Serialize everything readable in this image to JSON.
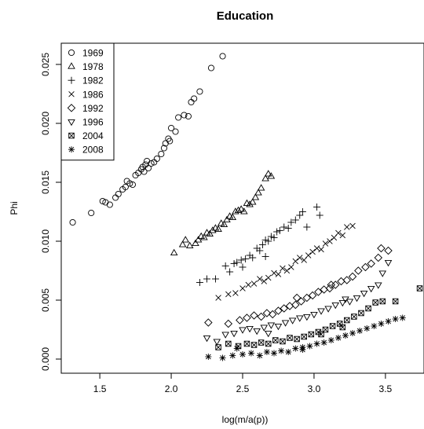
{
  "chart_data": {
    "type": "scatter",
    "title": "Education",
    "xlabel": "log(m/a(p))",
    "ylabel": "Phi",
    "xlim": [
      1.23,
      3.77
    ],
    "ylim": [
      -0.0012,
      0.0268
    ],
    "xticks": [
      1.5,
      2.0,
      2.5,
      3.0,
      3.5
    ],
    "xtick_labels": [
      "1.5",
      "2.0",
      "2.5",
      "3.0",
      "3.5"
    ],
    "yticks": [
      0.0,
      0.005,
      0.01,
      0.015,
      0.02,
      0.025
    ],
    "ytick_labels": [
      "0.000",
      "0.005",
      "0.010",
      "0.015",
      "0.020",
      "0.025"
    ],
    "grid": false,
    "legend_position": "top-left",
    "series": [
      {
        "name": "1969",
        "marker": "circle",
        "points": [
          [
            1.31,
            0.0116
          ],
          [
            1.44,
            0.0124
          ],
          [
            1.52,
            0.0134
          ],
          [
            1.54,
            0.0133
          ],
          [
            1.57,
            0.0131
          ],
          [
            1.61,
            0.0137
          ],
          [
            1.63,
            0.014
          ],
          [
            1.66,
            0.0144
          ],
          [
            1.68,
            0.0146
          ],
          [
            1.69,
            0.0151
          ],
          [
            1.71,
            0.0149
          ],
          [
            1.73,
            0.0148
          ],
          [
            1.75,
            0.0156
          ],
          [
            1.77,
            0.0158
          ],
          [
            1.79,
            0.0161
          ],
          [
            1.8,
            0.0163
          ],
          [
            1.81,
            0.0159
          ],
          [
            1.82,
            0.0165
          ],
          [
            1.83,
            0.0168
          ],
          [
            1.84,
            0.0162
          ],
          [
            1.86,
            0.0166
          ],
          [
            1.88,
            0.0167
          ],
          [
            1.9,
            0.017
          ],
          [
            1.93,
            0.0174
          ],
          [
            1.95,
            0.0179
          ],
          [
            1.96,
            0.0183
          ],
          [
            1.98,
            0.0187
          ],
          [
            1.99,
            0.0185
          ],
          [
            2.0,
            0.0196
          ],
          [
            2.03,
            0.0193
          ],
          [
            2.05,
            0.0205
          ],
          [
            2.09,
            0.0207
          ],
          [
            2.12,
            0.0206
          ],
          [
            2.14,
            0.0218
          ],
          [
            2.16,
            0.0221
          ],
          [
            2.2,
            0.0227
          ],
          [
            2.28,
            0.0247
          ],
          [
            2.36,
            0.0257
          ]
        ]
      },
      {
        "name": "1978",
        "marker": "triangle-up",
        "points": [
          [
            2.02,
            0.009
          ],
          [
            2.08,
            0.0097
          ],
          [
            2.1,
            0.0101
          ],
          [
            2.13,
            0.0096
          ],
          [
            2.17,
            0.0098
          ],
          [
            2.19,
            0.0101
          ],
          [
            2.21,
            0.0104
          ],
          [
            2.23,
            0.0103
          ],
          [
            2.25,
            0.0107
          ],
          [
            2.27,
            0.0106
          ],
          [
            2.29,
            0.0109
          ],
          [
            2.31,
            0.0111
          ],
          [
            2.33,
            0.011
          ],
          [
            2.35,
            0.0115
          ],
          [
            2.37,
            0.0114
          ],
          [
            2.39,
            0.0118
          ],
          [
            2.41,
            0.0121
          ],
          [
            2.43,
            0.012
          ],
          [
            2.45,
            0.0125
          ],
          [
            2.47,
            0.0126
          ],
          [
            2.49,
            0.0127
          ],
          [
            2.51,
            0.0125
          ],
          [
            2.53,
            0.0132
          ],
          [
            2.55,
            0.0131
          ],
          [
            2.57,
            0.0133
          ],
          [
            2.59,
            0.0137
          ],
          [
            2.61,
            0.0141
          ],
          [
            2.63,
            0.0145
          ],
          [
            2.66,
            0.0153
          ],
          [
            2.68,
            0.0157
          ],
          [
            2.7,
            0.0155
          ]
        ]
      },
      {
        "name": "1982",
        "marker": "plus",
        "points": [
          [
            2.2,
            0.0065
          ],
          [
            2.25,
            0.0068
          ],
          [
            2.31,
            0.0068
          ],
          [
            2.38,
            0.0079
          ],
          [
            2.41,
            0.0074
          ],
          [
            2.44,
            0.0081
          ],
          [
            2.46,
            0.0082
          ],
          [
            2.49,
            0.0084
          ],
          [
            2.52,
            0.0085
          ],
          [
            2.55,
            0.0088
          ],
          [
            2.57,
            0.0086
          ],
          [
            2.6,
            0.0094
          ],
          [
            2.62,
            0.0092
          ],
          [
            2.64,
            0.0097
          ],
          [
            2.66,
            0.0101
          ],
          [
            2.68,
            0.01
          ],
          [
            2.7,
            0.0104
          ],
          [
            2.72,
            0.0103
          ],
          [
            2.74,
            0.0108
          ],
          [
            2.76,
            0.0109
          ],
          [
            2.79,
            0.0112
          ],
          [
            2.82,
            0.0111
          ],
          [
            2.84,
            0.0116
          ],
          [
            2.87,
            0.0118
          ],
          [
            2.9,
            0.0122
          ],
          [
            2.92,
            0.0125
          ],
          [
            2.95,
            0.0112
          ],
          [
            3.02,
            0.0129
          ],
          [
            3.04,
            0.0122
          ],
          [
            2.5,
            0.0078
          ],
          [
            2.66,
            0.0087
          ]
        ]
      },
      {
        "name": "1986",
        "marker": "cross",
        "points": [
          [
            2.33,
            0.0052
          ],
          [
            2.4,
            0.0055
          ],
          [
            2.45,
            0.0056
          ],
          [
            2.5,
            0.006
          ],
          [
            2.54,
            0.0063
          ],
          [
            2.58,
            0.0064
          ],
          [
            2.62,
            0.0068
          ],
          [
            2.65,
            0.0066
          ],
          [
            2.68,
            0.0069
          ],
          [
            2.72,
            0.0073
          ],
          [
            2.75,
            0.0072
          ],
          [
            2.78,
            0.0077
          ],
          [
            2.81,
            0.0075
          ],
          [
            2.84,
            0.0078
          ],
          [
            2.87,
            0.0083
          ],
          [
            2.9,
            0.0086
          ],
          [
            2.93,
            0.0084
          ],
          [
            2.96,
            0.0088
          ],
          [
            2.99,
            0.0091
          ],
          [
            3.02,
            0.0094
          ],
          [
            3.05,
            0.0093
          ],
          [
            3.08,
            0.0098
          ],
          [
            3.11,
            0.01
          ],
          [
            3.14,
            0.0103
          ],
          [
            3.17,
            0.0107
          ],
          [
            3.2,
            0.0105
          ],
          [
            3.23,
            0.0112
          ],
          [
            3.27,
            0.0113
          ]
        ]
      },
      {
        "name": "1992",
        "marker": "diamond",
        "points": [
          [
            2.26,
            0.0031
          ],
          [
            2.4,
            0.003
          ],
          [
            2.48,
            0.0033
          ],
          [
            2.53,
            0.0035
          ],
          [
            2.58,
            0.0037
          ],
          [
            2.63,
            0.0036
          ],
          [
            2.67,
            0.0039
          ],
          [
            2.71,
            0.0038
          ],
          [
            2.75,
            0.0041
          ],
          [
            2.79,
            0.0043
          ],
          [
            2.83,
            0.0045
          ],
          [
            2.87,
            0.0046
          ],
          [
            2.91,
            0.0049
          ],
          [
            2.95,
            0.0052
          ],
          [
            2.99,
            0.0054
          ],
          [
            3.03,
            0.0057
          ],
          [
            3.07,
            0.0059
          ],
          [
            3.11,
            0.006
          ],
          [
            3.15,
            0.0063
          ],
          [
            3.19,
            0.0066
          ],
          [
            3.23,
            0.0067
          ],
          [
            3.27,
            0.007
          ],
          [
            3.31,
            0.0075
          ],
          [
            3.36,
            0.0078
          ],
          [
            3.4,
            0.0081
          ],
          [
            3.45,
            0.0086
          ],
          [
            3.47,
            0.0094
          ],
          [
            3.52,
            0.0092
          ],
          [
            2.88,
            0.0052
          ],
          [
            3.12,
            0.0063
          ]
        ]
      },
      {
        "name": "1996",
        "marker": "triangle-down",
        "points": [
          [
            2.25,
            0.0018
          ],
          [
            2.32,
            0.0015
          ],
          [
            2.38,
            0.0021
          ],
          [
            2.44,
            0.0022
          ],
          [
            2.5,
            0.0025
          ],
          [
            2.55,
            0.0026
          ],
          [
            2.6,
            0.0024
          ],
          [
            2.65,
            0.0027
          ],
          [
            2.7,
            0.0029
          ],
          [
            2.75,
            0.0028
          ],
          [
            2.8,
            0.0031
          ],
          [
            2.85,
            0.0033
          ],
          [
            2.9,
            0.0035
          ],
          [
            2.95,
            0.0036
          ],
          [
            3.0,
            0.0038
          ],
          [
            3.05,
            0.0041
          ],
          [
            3.1,
            0.0043
          ],
          [
            3.15,
            0.0046
          ],
          [
            3.2,
            0.0048
          ],
          [
            3.25,
            0.0049
          ],
          [
            3.3,
            0.0052
          ],
          [
            3.35,
            0.0056
          ],
          [
            3.4,
            0.006
          ],
          [
            3.45,
            0.0063
          ],
          [
            3.48,
            0.0073
          ],
          [
            3.52,
            0.0082
          ],
          [
            2.68,
            0.0022
          ],
          [
            3.22,
            0.0051
          ]
        ]
      },
      {
        "name": "2004",
        "marker": "boxed-x",
        "points": [
          [
            2.33,
            0.001
          ],
          [
            2.4,
            0.0013
          ],
          [
            2.47,
            0.0011
          ],
          [
            2.53,
            0.0013
          ],
          [
            2.58,
            0.0012
          ],
          [
            2.63,
            0.0014
          ],
          [
            2.68,
            0.0013
          ],
          [
            2.73,
            0.0016
          ],
          [
            2.78,
            0.0015
          ],
          [
            2.83,
            0.0018
          ],
          [
            2.88,
            0.0017
          ],
          [
            2.93,
            0.0019
          ],
          [
            2.98,
            0.0021
          ],
          [
            3.03,
            0.0023
          ],
          [
            3.08,
            0.0025
          ],
          [
            3.13,
            0.0028
          ],
          [
            3.18,
            0.003
          ],
          [
            3.23,
            0.0033
          ],
          [
            3.28,
            0.0036
          ],
          [
            3.33,
            0.0039
          ],
          [
            3.38,
            0.0043
          ],
          [
            3.43,
            0.0048
          ],
          [
            3.48,
            0.0049
          ],
          [
            3.57,
            0.0049
          ],
          [
            3.74,
            0.006
          ],
          [
            3.2,
            0.0027
          ],
          [
            3.05,
            0.0021
          ]
        ]
      },
      {
        "name": "2008",
        "marker": "asterisk",
        "points": [
          [
            2.26,
            0.0002
          ],
          [
            2.36,
            0.0001
          ],
          [
            2.43,
            0.0003
          ],
          [
            2.5,
            0.0004
          ],
          [
            2.56,
            0.0005
          ],
          [
            2.62,
            0.0003
          ],
          [
            2.67,
            0.0006
          ],
          [
            2.72,
            0.0005
          ],
          [
            2.77,
            0.0007
          ],
          [
            2.82,
            0.0006
          ],
          [
            2.87,
            0.0009
          ],
          [
            2.92,
            0.001
          ],
          [
            2.97,
            0.0011
          ],
          [
            3.02,
            0.0013
          ],
          [
            3.07,
            0.0014
          ],
          [
            3.12,
            0.0016
          ],
          [
            3.17,
            0.0018
          ],
          [
            3.22,
            0.002
          ],
          [
            3.27,
            0.0022
          ],
          [
            3.32,
            0.0024
          ],
          [
            3.37,
            0.0026
          ],
          [
            3.42,
            0.0028
          ],
          [
            3.47,
            0.003
          ],
          [
            3.52,
            0.0032
          ],
          [
            3.57,
            0.0034
          ],
          [
            3.62,
            0.0035
          ],
          [
            2.46,
            0.0009
          ],
          [
            2.92,
            0.0008
          ]
        ]
      }
    ]
  }
}
